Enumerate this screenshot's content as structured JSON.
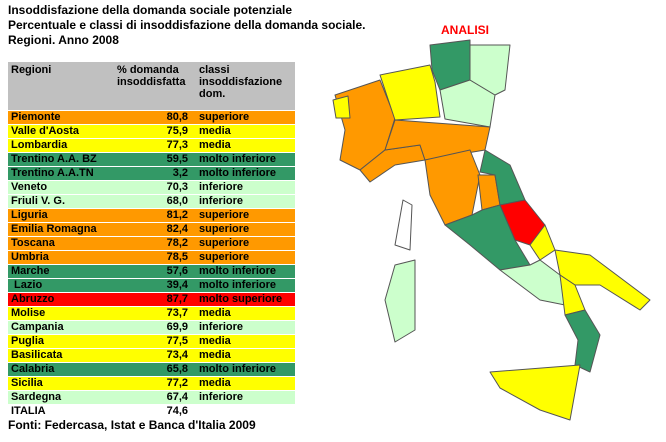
{
  "header": {
    "lines": [
      "Insoddisfazione della domanda sociale potenziale",
      "Percentuale e classi di insoddisfazione della domanda sociale.",
      "Regioni. Anno 2008"
    ]
  },
  "table": {
    "columns": [
      "Regioni",
      "% domanda insoddisfatta",
      "classi insoddisfazione dom."
    ],
    "rows": [
      {
        "region": "Piemonte",
        "value": "80,8",
        "class": "superiore",
        "color": "#ff9900"
      },
      {
        "region": "Valle d'Aosta",
        "value": "75,9",
        "class": "media",
        "color": "#ffff00"
      },
      {
        "region": "Lombardia",
        "value": "77,3",
        "class": "media",
        "color": "#ffff00"
      },
      {
        "region": "Trentino A.A. BZ",
        "value": "59,5",
        "class": "molto inferiore",
        "color": "#339966"
      },
      {
        "region": "Trentino A.A.TN",
        "value": "3,2",
        "class": "molto inferiore",
        "color": "#339966"
      },
      {
        "region": "Veneto",
        "value": "70,3",
        "class": "inferiore",
        "color": "#ccffcc"
      },
      {
        "region": "Friuli V. G.",
        "value": "68,0",
        "class": "inferiore",
        "color": "#ccffcc"
      },
      {
        "region": "Liguria",
        "value": "81,2",
        "class": "superiore",
        "color": "#ff9900"
      },
      {
        "region": "Emilia Romagna",
        "value": "82,4",
        "class": "superiore",
        "color": "#ff9900"
      },
      {
        "region": "Toscana",
        "value": "78,2",
        "class": "superiore",
        "color": "#ff9900"
      },
      {
        "region": "Umbria",
        "value": "78,5",
        "class": "superiore",
        "color": "#ff9900"
      },
      {
        "region": "Marche",
        "value": "57,6",
        "class": "molto inferiore",
        "color": "#339966"
      },
      {
        "region": " Lazio",
        "value": "39,4",
        "class": "molto inferiore",
        "color": "#339966"
      },
      {
        "region": "Abruzzo",
        "value": "87,7",
        "class": "molto superiore",
        "color": "#ff0000"
      },
      {
        "region": "Molise",
        "value": "73,7",
        "class": "media",
        "color": "#ffff00"
      },
      {
        "region": "Campania",
        "value": "69,9",
        "class": "inferiore",
        "color": "#ccffcc"
      },
      {
        "region": "Puglia",
        "value": "77,5",
        "class": "media",
        "color": "#ffff00"
      },
      {
        "region": "Basilicata",
        "value": "73,4",
        "class": "media",
        "color": "#ffff00"
      },
      {
        "region": "Calabria",
        "value": "65,8",
        "class": "molto inferiore",
        "color": "#339966"
      },
      {
        "region": "Sicilia",
        "value": "77,2",
        "class": "media",
        "color": "#ffff00"
      },
      {
        "region": "Sardegna",
        "value": "67,4",
        "class": "inferiore",
        "color": "#ccffcc"
      }
    ],
    "total": {
      "region": "ITALIA",
      "value": "74,6"
    }
  },
  "source": "Fonti: Federcasa, Istat e Banca d'Italia 2009",
  "map": {
    "label": "ANALISI"
  }
}
